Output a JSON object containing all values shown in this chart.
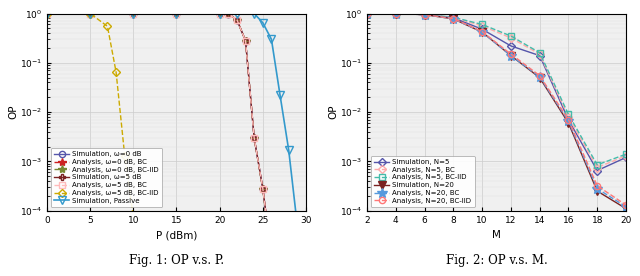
{
  "fig1": {
    "title": "Fig. 1: OP v.s. P.",
    "xlabel": "P (dBm)",
    "ylabel": "OP",
    "xlim": [
      0,
      30
    ],
    "ylim_log": [
      -4,
      0
    ],
    "series": [
      {
        "label": "Simulation, ω=0 dB",
        "x": [
          0,
          5,
          10,
          15,
          20,
          21,
          22,
          23,
          24,
          25,
          26,
          27
        ],
        "y": [
          1.0,
          1.0,
          1.0,
          1.0,
          1.0,
          0.98,
          0.75,
          0.28,
          0.003,
          0.00028,
          1.2e-05,
          8e-07
        ],
        "color": "#5555aa",
        "linestyle": "-",
        "marker": "o",
        "markersize": 4.5,
        "markerfacecolor": "none",
        "linewidth": 1.0
      },
      {
        "label": "Analysis, ω=0 dB, BC",
        "x": [
          0,
          5,
          10,
          15,
          20,
          21,
          22,
          23,
          24,
          25,
          26,
          27
        ],
        "y": [
          1.0,
          1.0,
          1.0,
          1.0,
          1.0,
          0.98,
          0.75,
          0.28,
          0.003,
          0.00028,
          1.2e-05,
          8e-07
        ],
        "color": "#cc2222",
        "linestyle": "--",
        "marker": "*",
        "markersize": 6,
        "markerfacecolor": "#cc2222",
        "linewidth": 1.0
      },
      {
        "label": "Analysis, ω=0 dB, BC-IID",
        "x": [
          0,
          5,
          10,
          15,
          20,
          21,
          22,
          23,
          24,
          25,
          26,
          27
        ],
        "y": [
          1.0,
          1.0,
          1.0,
          1.0,
          1.0,
          0.98,
          0.75,
          0.28,
          0.003,
          0.00027,
          1.1e-05,
          7e-07
        ],
        "color": "#778833",
        "linestyle": "--",
        "marker": "*",
        "markersize": 6,
        "markerfacecolor": "#778833",
        "linewidth": 1.0
      },
      {
        "label": "Simulation, ω=5 dB",
        "x": [
          0,
          5,
          10,
          15,
          20,
          21,
          22,
          23,
          24,
          25,
          26,
          27
        ],
        "y": [
          1.0,
          1.0,
          1.0,
          1.0,
          1.0,
          0.98,
          0.75,
          0.28,
          0.003,
          0.00028,
          1.2e-05,
          8e-07
        ],
        "color": "#7a2222",
        "linestyle": "-",
        "marker": "P",
        "markersize": 4.5,
        "markerfacecolor": "none",
        "linewidth": 1.0
      },
      {
        "label": "Analysis, ω=5 dB, BC",
        "x": [
          0,
          5,
          10,
          15,
          20,
          21,
          22,
          23,
          24,
          25,
          26,
          27
        ],
        "y": [
          1.0,
          1.0,
          1.0,
          1.0,
          1.0,
          0.98,
          0.75,
          0.28,
          0.003,
          0.00028,
          1.2e-05,
          8e-07
        ],
        "color": "#ffbbbb",
        "linestyle": "--",
        "marker": "s",
        "markersize": 4.5,
        "markerfacecolor": "none",
        "linewidth": 1.0
      },
      {
        "label": "Analysis, ω=5 dB, BC-IID",
        "x": [
          0,
          5,
          7,
          8,
          9,
          10,
          11,
          12
        ],
        "y": [
          1.0,
          1.0,
          0.55,
          0.065,
          0.0013,
          7.5e-05,
          8e-07,
          3e-08
        ],
        "color": "#ccaa00",
        "linestyle": "--",
        "marker": "D",
        "markersize": 4.5,
        "markerfacecolor": "none",
        "linewidth": 1.0
      },
      {
        "label": "Simulation, Passive",
        "x": [
          0,
          5,
          10,
          15,
          20,
          22,
          24,
          25,
          26,
          27,
          28,
          29,
          30
        ],
        "y": [
          1.0,
          1.0,
          1.0,
          1.0,
          1.0,
          1.0,
          1.0,
          0.65,
          0.3,
          0.022,
          0.0017,
          5e-05,
          3.5e-06
        ],
        "color": "#3399cc",
        "linestyle": "-",
        "marker": "v",
        "markersize": 6,
        "markerfacecolor": "none",
        "linewidth": 1.2
      }
    ]
  },
  "fig2": {
    "title": "Fig. 2: OP v.s. M.",
    "xlabel": "M",
    "ylabel": "OP",
    "xlim": [
      2,
      20
    ],
    "ylim_log": [
      -4,
      0
    ],
    "xticks": [
      2,
      4,
      6,
      8,
      10,
      12,
      14,
      16,
      18,
      20
    ],
    "series": [
      {
        "label": "Simulation, N=5",
        "x": [
          2,
          4,
          6,
          8,
          10,
          12,
          14,
          16,
          18,
          20
        ],
        "y": [
          1.0,
          1.0,
          0.95,
          0.82,
          0.48,
          0.22,
          0.14,
          0.007,
          0.00065,
          0.0012
        ],
        "color": "#5555aa",
        "linestyle": "-",
        "marker": "D",
        "markersize": 4.5,
        "markerfacecolor": "none",
        "linewidth": 1.0
      },
      {
        "label": "Analysis, N=5, BC",
        "x": [
          2,
          4,
          6,
          8,
          10,
          12,
          14,
          16,
          18,
          20
        ],
        "y": [
          1.0,
          1.0,
          0.95,
          0.83,
          0.56,
          0.32,
          0.15,
          0.008,
          0.00075,
          0.0013
        ],
        "color": "#ffaaaa",
        "linestyle": "--",
        "marker": "D",
        "markersize": 4.5,
        "markerfacecolor": "none",
        "linewidth": 1.0
      },
      {
        "label": "Analysis, N=5, BC-IID",
        "x": [
          2,
          4,
          6,
          8,
          10,
          12,
          14,
          16,
          18,
          20
        ],
        "y": [
          1.0,
          1.0,
          0.95,
          0.84,
          0.6,
          0.35,
          0.16,
          0.009,
          0.00085,
          0.0014
        ],
        "color": "#44bbaa",
        "linestyle": "--",
        "marker": "s",
        "markersize": 4.5,
        "markerfacecolor": "none",
        "linewidth": 1.0
      },
      {
        "label": "Simulation, N=20",
        "x": [
          2,
          4,
          6,
          8,
          10,
          12,
          14,
          16,
          18,
          20
        ],
        "y": [
          1.0,
          1.0,
          0.95,
          0.78,
          0.42,
          0.14,
          0.05,
          0.006,
          0.00025,
          0.00011
        ],
        "color": "#7a2222",
        "linestyle": "-",
        "marker": "v",
        "markersize": 6,
        "markerfacecolor": "#7a2222",
        "linewidth": 1.0
      },
      {
        "label": "Analysis, N=20, BC",
        "x": [
          2,
          4,
          6,
          8,
          10,
          12,
          14,
          16,
          18,
          20
        ],
        "y": [
          1.0,
          1.0,
          0.95,
          0.78,
          0.42,
          0.14,
          0.052,
          0.0065,
          0.00028,
          0.00012
        ],
        "color": "#5599dd",
        "linestyle": "--",
        "marker": "*",
        "markersize": 7,
        "markerfacecolor": "#5599dd",
        "linewidth": 1.0
      },
      {
        "label": "Analysis, N=20, BC-IID",
        "x": [
          2,
          4,
          6,
          8,
          10,
          12,
          14,
          16,
          18,
          20
        ],
        "y": [
          1.0,
          1.0,
          0.95,
          0.79,
          0.43,
          0.15,
          0.055,
          0.007,
          0.00032,
          0.00013
        ],
        "color": "#ff7777",
        "linestyle": "--",
        "marker": "o",
        "markersize": 4.5,
        "markerfacecolor": "none",
        "linewidth": 1.0
      }
    ]
  },
  "bg_color": "#f0f0f0",
  "grid_color": "#cccccc",
  "grid_color_minor": "#dddddd"
}
